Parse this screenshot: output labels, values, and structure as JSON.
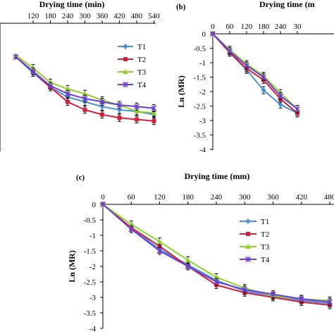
{
  "chart_data": [
    {
      "type": "line",
      "panel": "",
      "xlabel": "Drying time (min)",
      "ylabel": "",
      "x_ticks": [
        "120",
        "180",
        "240",
        "300",
        "360",
        "420",
        "480",
        "540"
      ],
      "y_ticks": [],
      "x": [
        60,
        120,
        180,
        240,
        300,
        360,
        420,
        480,
        540
      ],
      "series": [
        {
          "name": "T1",
          "color": "#4a90d9",
          "marker": "diamond",
          "values": [
            -1.05,
            -1.55,
            -2.0,
            -2.3,
            -2.45,
            -2.6,
            -2.7,
            -2.75,
            -2.85
          ]
        },
        {
          "name": "T2",
          "color": "#d0203a",
          "marker": "square",
          "values": [
            -1.05,
            -1.5,
            -2.0,
            -2.45,
            -2.7,
            -2.85,
            -2.95,
            -3.0,
            -3.05
          ]
        },
        {
          "name": "T3",
          "color": "#8fd12a",
          "marker": "triangle",
          "values": [
            -1.0,
            -1.4,
            -1.85,
            -2.05,
            -2.2,
            -2.4,
            -2.55,
            -2.75,
            -2.8
          ]
        },
        {
          "name": "T4",
          "color": "#6b3fd1",
          "marker": "star",
          "values": [
            -1.05,
            -1.5,
            -1.95,
            -2.2,
            -2.35,
            -2.45,
            -2.55,
            -2.6,
            -2.65
          ]
        }
      ],
      "legend": {
        "position": "right",
        "entries": [
          "T1",
          "T2",
          "T3",
          "T4"
        ]
      }
    },
    {
      "type": "line",
      "panel": "(b)",
      "xlabel": "Drying time (m",
      "ylabel": "Ln (MR)",
      "x_ticks": [
        "0",
        "60",
        "120",
        "180",
        "240",
        "30"
      ],
      "y_ticks": [
        "0",
        "-0.5",
        "-1",
        "-1.5",
        "-2",
        "-2.5",
        "-3",
        "-3.5",
        "-4"
      ],
      "x": [
        0,
        60,
        120,
        180,
        240,
        300
      ],
      "series": [
        {
          "name": "T1",
          "color": "#4a90d9",
          "marker": "diamond",
          "values": [
            0,
            -0.65,
            -1.25,
            -1.95,
            -2.45,
            -2.75
          ]
        },
        {
          "name": "T2",
          "color": "#d0203a",
          "marker": "square",
          "values": [
            0,
            -0.65,
            -1.2,
            -1.6,
            -2.25,
            -2.75
          ]
        },
        {
          "name": "T3",
          "color": "#8fd12a",
          "marker": "triangle",
          "values": [
            0,
            -0.55,
            -1.05,
            -1.45,
            -2.05,
            -2.6
          ]
        },
        {
          "name": "T4",
          "color": "#6b3fd1",
          "marker": "star",
          "values": [
            0,
            -0.6,
            -1.1,
            -1.5,
            -2.15,
            -2.6
          ]
        }
      ]
    },
    {
      "type": "line",
      "panel": "(c)",
      "xlabel": "Drying time (mm)",
      "ylabel": "Ln (MR)",
      "x_ticks": [
        "0",
        "60",
        "120",
        "180",
        "240",
        "300",
        "360",
        "420",
        "480"
      ],
      "y_ticks": [
        "0",
        "-0.5",
        "-1",
        "-1.5",
        "-2",
        "-2.5",
        "-3",
        "-3.5",
        "-4"
      ],
      "ylim": [
        -4,
        0
      ],
      "xlim": [
        0,
        480
      ],
      "x": [
        0,
        60,
        120,
        180,
        240,
        300,
        360,
        420,
        480
      ],
      "series": [
        {
          "name": "T1",
          "color": "#4a90d9",
          "marker": "diamond",
          "values": [
            0,
            -0.75,
            -1.45,
            -1.95,
            -2.45,
            -2.8,
            -2.95,
            -3.1,
            -3.2
          ]
        },
        {
          "name": "T2",
          "color": "#d0203a",
          "marker": "square",
          "values": [
            0,
            -0.75,
            -1.35,
            -2.0,
            -2.6,
            -2.85,
            -3.0,
            -3.15,
            -3.25
          ]
        },
        {
          "name": "T3",
          "color": "#8fd12a",
          "marker": "triangle",
          "values": [
            0,
            -0.65,
            -1.2,
            -1.8,
            -2.35,
            -2.7,
            -2.95,
            -3.05,
            -3.1
          ]
        },
        {
          "name": "T4",
          "color": "#6b3fd1",
          "marker": "star",
          "values": [
            0,
            -0.8,
            -1.5,
            -2.0,
            -2.5,
            -2.75,
            -2.9,
            -3.05,
            -3.15
          ]
        }
      ],
      "legend": {
        "position": "right",
        "entries": [
          "T1",
          "T2",
          "T3",
          "T4"
        ]
      }
    }
  ]
}
